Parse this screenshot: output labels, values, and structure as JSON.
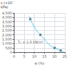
{
  "chart_data": {
    "type": "line",
    "xlabel": "w (%)",
    "ylabel": "s (×10´\nkPa)",
    "xlim": [
      0,
      25
    ],
    "ylim": [
      0,
      4500
    ],
    "xticks": [
      0,
      5,
      10,
      15,
      20,
      25
    ],
    "yticks": [
      0,
      500,
      1000,
      1500,
      2000,
      2500,
      3000,
      3500,
      4000,
      4500
    ],
    "grid": true,
    "series": [
      {
        "type": "line",
        "color": "#55ccee",
        "x": [
          7.5,
          8,
          9,
          10,
          11,
          12,
          13,
          14,
          15,
          16,
          17,
          18,
          19,
          20,
          21,
          22,
          23,
          23.5,
          24,
          24.5
        ],
        "values": [
          4100,
          3800,
          3300,
          2900,
          2550,
          2250,
          2000,
          1750,
          1480,
          1200,
          950,
          750,
          600,
          500,
          380,
          280,
          200,
          120,
          50,
          10
        ]
      },
      {
        "type": "scatter",
        "color": "#222222",
        "marker": "square",
        "x": [
          8,
          13,
          20,
          23
        ],
        "values": [
          3800,
          2000,
          500,
          200
        ]
      }
    ],
    "annotations": [
      {
        "text": "Tₚ = 1.6 kN/m²",
        "x": 14.5,
        "y": 1200
      }
    ]
  }
}
